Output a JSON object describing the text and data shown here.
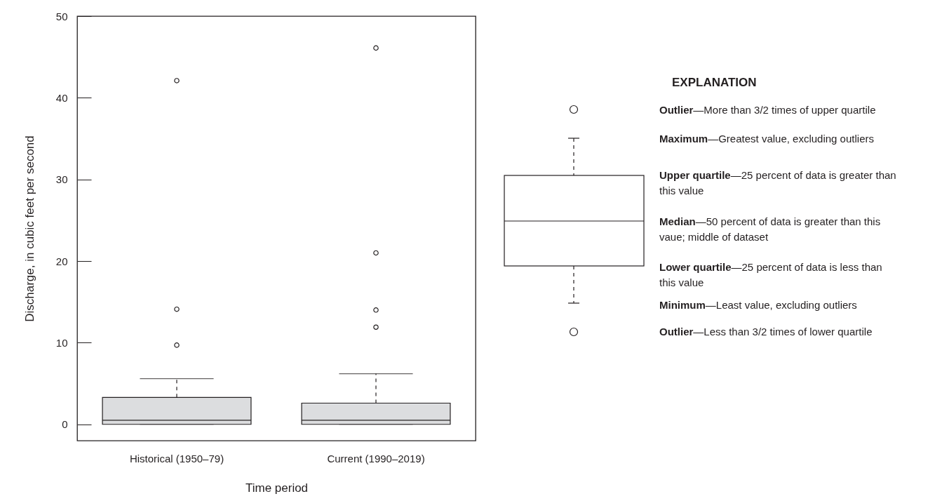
{
  "chart_data": {
    "type": "box",
    "xlabel": "Time period",
    "ylabel": "Discharge, in cubic feet per second",
    "categories": [
      "Historical (1950–79)",
      "Current (1990–2019)"
    ],
    "series": [
      {
        "color": "#dcdddf",
        "boxes": [
          {
            "low": 0,
            "q1": 0,
            "median": 0.5,
            "q3": 3.3,
            "high": 5.6,
            "outliers": [
              9.7,
              14.1,
              42.1
            ]
          },
          {
            "low": 0,
            "q1": 0,
            "median": 0.5,
            "q3": 2.6,
            "high": 6.2,
            "outliers": [
              11.9,
              14.0,
              21.0,
              46.1
            ]
          }
        ]
      }
    ],
    "ylim": [
      -2,
      50
    ],
    "yticks": [
      0,
      10,
      20,
      30,
      40,
      50
    ],
    "annotations": [
      "EXPLANATION",
      "Outlier—More than 3/2 times of upper quartile",
      "Maximum—Greatest value, excluding outliers",
      "Upper quartile—25 percent of data is greater than this value",
      "Median—50 percent of data is greater than this vaue; middle of dataset",
      "Lower quartile—25 percent of data is less than this value",
      "Minimum—Least value, excluding outliers",
      "Outlier—Less than 3/2 times of lower quartile"
    ]
  }
}
